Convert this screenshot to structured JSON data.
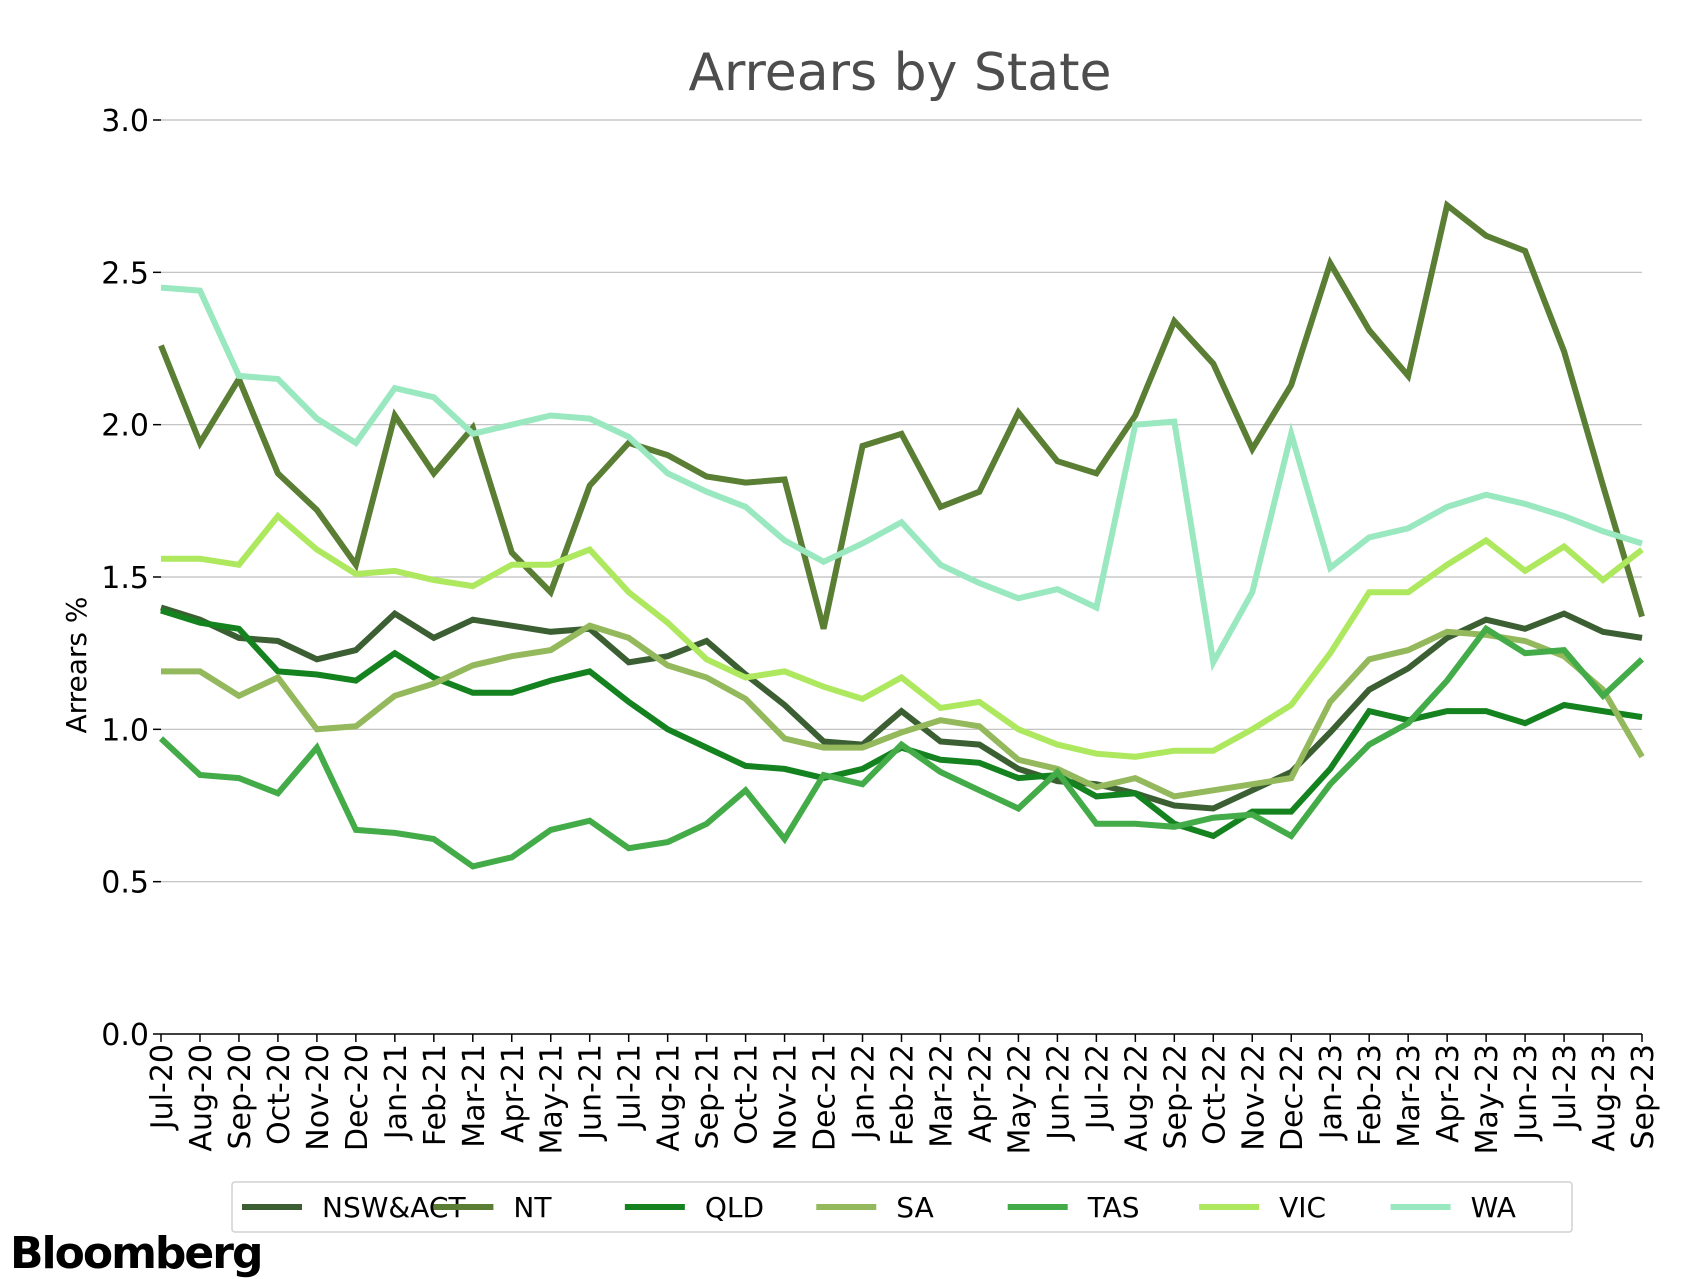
{
  "brand": "Bloomberg",
  "chart_data": {
    "type": "line",
    "title": "Arrears by State",
    "xlabel": "",
    "ylabel": "Arrears %",
    "ylim": [
      0,
      3.0
    ],
    "yticks": [
      "0.0",
      "0.5",
      "1.0",
      "1.5",
      "2.0",
      "2.5",
      "3.0"
    ],
    "grid": "horizontal",
    "legend_position": "bottom",
    "categories": [
      "Jul-20",
      "Aug-20",
      "Sep-20",
      "Oct-20",
      "Nov-20",
      "Dec-20",
      "Jan-21",
      "Feb-21",
      "Mar-21",
      "Apr-21",
      "May-21",
      "Jun-21",
      "Jul-21",
      "Aug-21",
      "Sep-21",
      "Oct-21",
      "Nov-21",
      "Dec-21",
      "Jan-22",
      "Feb-22",
      "Mar-22",
      "Apr-22",
      "May-22",
      "Jun-22",
      "Jul-22",
      "Aug-22",
      "Sep-22",
      "Oct-22",
      "Nov-22",
      "Dec-22",
      "Jan-23",
      "Feb-23",
      "Mar-23",
      "Apr-23",
      "May-23",
      "Jun-23",
      "Jul-23",
      "Aug-23",
      "Sep-23"
    ],
    "series": [
      {
        "name": "NSW&ACT",
        "color": "#3b5f32",
        "values": [
          1.4,
          1.36,
          1.3,
          1.29,
          1.23,
          1.26,
          1.38,
          1.3,
          1.36,
          1.34,
          1.32,
          1.33,
          1.22,
          1.24,
          1.29,
          1.18,
          1.08,
          0.96,
          0.95,
          1.06,
          0.96,
          0.95,
          0.87,
          0.83,
          0.82,
          0.79,
          0.75,
          0.74,
          0.8,
          0.86,
          0.99,
          1.13,
          1.2,
          1.3,
          1.36,
          1.33,
          1.38,
          1.32,
          1.3
        ]
      },
      {
        "name": "NT",
        "color": "#5a7e33",
        "values": [
          2.26,
          1.94,
          2.15,
          1.84,
          1.72,
          1.54,
          2.03,
          1.84,
          1.99,
          1.58,
          1.45,
          1.8,
          1.94,
          1.9,
          1.83,
          1.81,
          1.82,
          1.33,
          1.93,
          1.97,
          1.73,
          1.78,
          2.04,
          1.88,
          1.84,
          2.03,
          2.34,
          2.2,
          1.92,
          2.13,
          2.53,
          2.31,
          2.16,
          2.72,
          2.62,
          2.57,
          2.24,
          1.8,
          1.37
        ]
      },
      {
        "name": "QLD",
        "color": "#14821e",
        "values": [
          1.39,
          1.35,
          1.33,
          1.19,
          1.18,
          1.16,
          1.25,
          1.17,
          1.12,
          1.12,
          1.16,
          1.19,
          1.09,
          1.0,
          0.94,
          0.88,
          0.87,
          0.84,
          0.87,
          0.94,
          0.9,
          0.89,
          0.84,
          0.85,
          0.78,
          0.79,
          0.69,
          0.65,
          0.73,
          0.73,
          0.87,
          1.06,
          1.03,
          1.06,
          1.06,
          1.02,
          1.08,
          1.06,
          1.04
        ]
      },
      {
        "name": "SA",
        "color": "#94b85c",
        "values": [
          1.19,
          1.19,
          1.11,
          1.17,
          1.0,
          1.01,
          1.11,
          1.15,
          1.21,
          1.24,
          1.26,
          1.34,
          1.3,
          1.21,
          1.17,
          1.1,
          0.97,
          0.94,
          0.94,
          0.99,
          1.03,
          1.01,
          0.9,
          0.87,
          0.81,
          0.84,
          0.78,
          0.8,
          0.82,
          0.84,
          1.09,
          1.23,
          1.26,
          1.32,
          1.31,
          1.29,
          1.24,
          1.13,
          0.91
        ]
      },
      {
        "name": "TAS",
        "color": "#43ab48",
        "values": [
          0.97,
          0.85,
          0.84,
          0.79,
          0.94,
          0.67,
          0.66,
          0.64,
          0.55,
          0.58,
          0.67,
          0.7,
          0.61,
          0.63,
          0.69,
          0.8,
          0.64,
          0.85,
          0.82,
          0.95,
          0.86,
          0.8,
          0.74,
          0.86,
          0.69,
          0.69,
          0.68,
          0.71,
          0.72,
          0.65,
          0.82,
          0.95,
          1.02,
          1.16,
          1.33,
          1.25,
          1.26,
          1.11,
          1.23
        ]
      },
      {
        "name": "VIC",
        "color": "#ade85e",
        "values": [
          1.56,
          1.56,
          1.54,
          1.7,
          1.59,
          1.51,
          1.52,
          1.49,
          1.47,
          1.54,
          1.54,
          1.59,
          1.45,
          1.35,
          1.23,
          1.17,
          1.19,
          1.14,
          1.1,
          1.17,
          1.07,
          1.09,
          1.0,
          0.95,
          0.92,
          0.91,
          0.93,
          0.93,
          1.0,
          1.08,
          1.25,
          1.45,
          1.45,
          1.54,
          1.62,
          1.52,
          1.6,
          1.49,
          1.59
        ]
      },
      {
        "name": "WA",
        "color": "#9ae8c0",
        "values": [
          2.45,
          2.44,
          2.16,
          2.15,
          2.02,
          1.94,
          2.12,
          2.09,
          1.97,
          2.0,
          2.03,
          2.02,
          1.96,
          1.84,
          1.78,
          1.73,
          1.62,
          1.55,
          1.61,
          1.68,
          1.54,
          1.48,
          1.43,
          1.46,
          1.4,
          2.0,
          2.01,
          1.22,
          1.45,
          1.97,
          1.53,
          1.63,
          1.66,
          1.73,
          1.77,
          1.74,
          1.7,
          1.65,
          1.61
        ]
      }
    ]
  }
}
